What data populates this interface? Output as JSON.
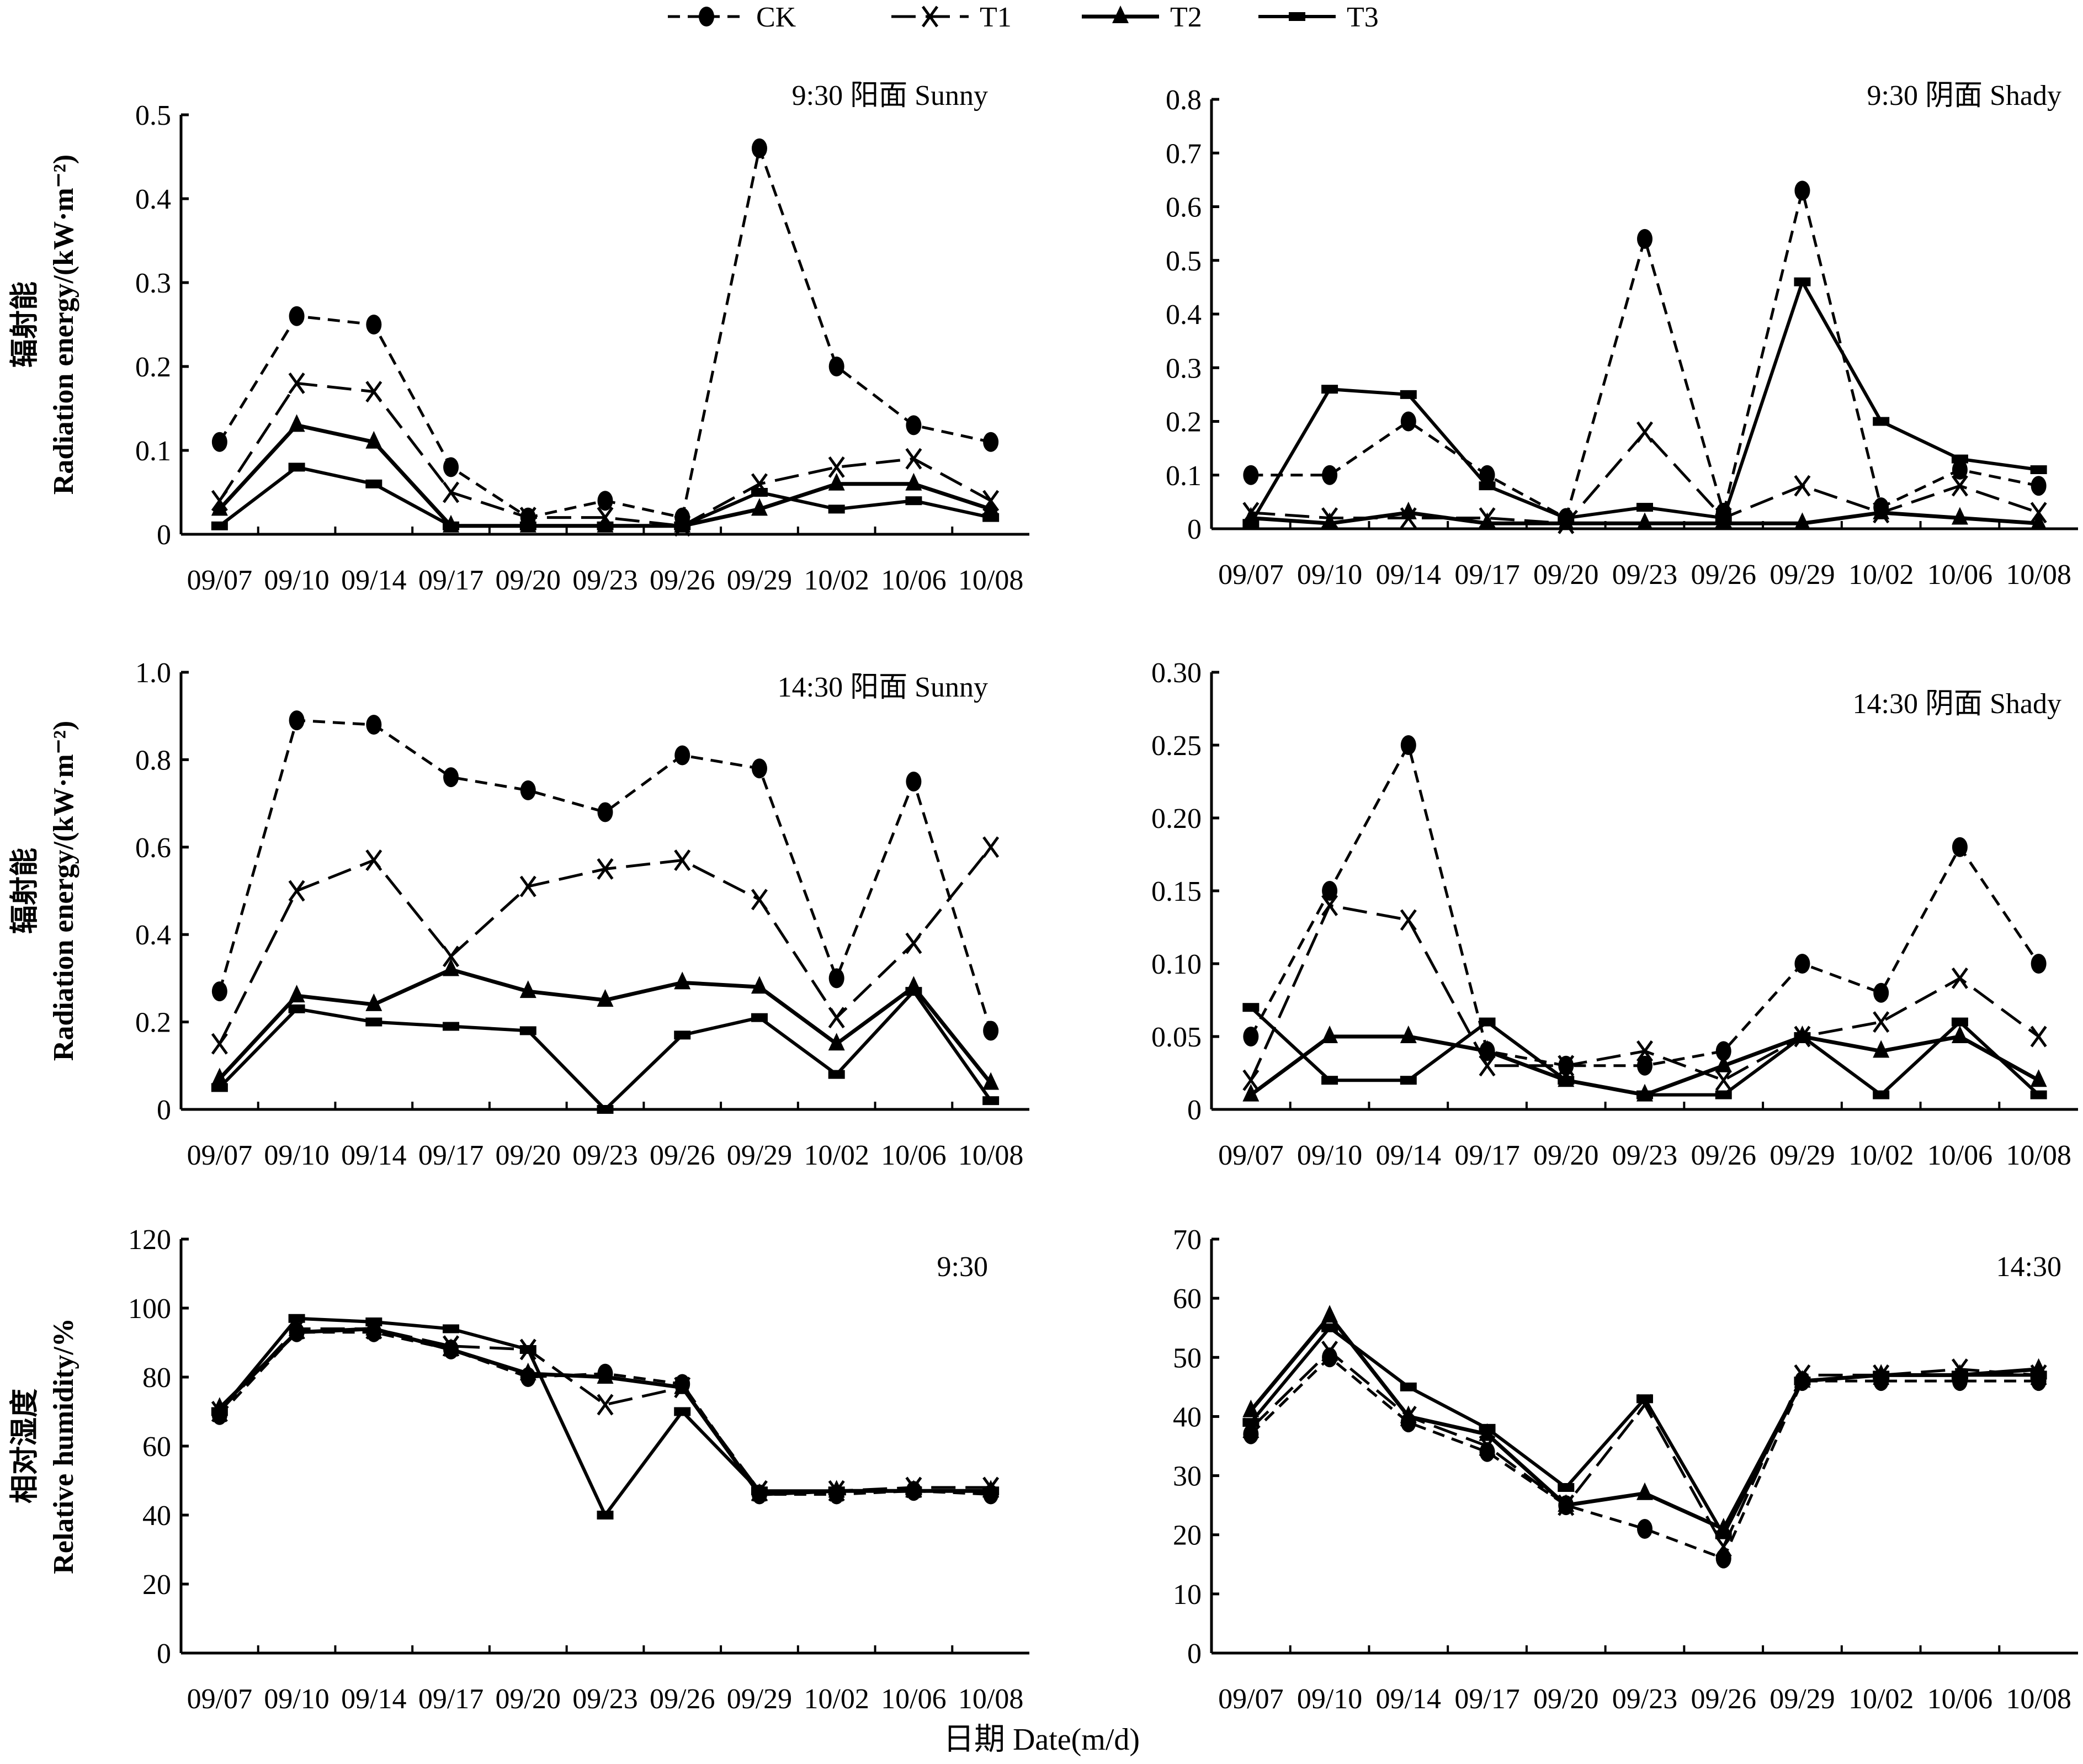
{
  "legend": [
    {
      "name": "CK",
      "marker": "circle",
      "dash": "dash"
    },
    {
      "name": "T1",
      "marker": "x",
      "dash": "longdash"
    },
    {
      "name": "T2",
      "marker": "triangle",
      "dash": "solid"
    },
    {
      "name": "T3",
      "marker": "bar",
      "dash": "solid"
    }
  ],
  "xlabel_global": "日期 Date(m/d)",
  "chart_data": [
    {
      "type": "line",
      "title": "9:30 阳面 Sunny",
      "ylabel_cn": "辐射能",
      "ylabel_en": "Radiation energy/(kW·m⁻²)",
      "categories": [
        "09/07",
        "09/10",
        "09/14",
        "09/17",
        "09/20",
        "09/23",
        "09/26",
        "09/29",
        "10/02",
        "10/06",
        "10/08"
      ],
      "ylim": [
        0,
        0.5
      ],
      "yticks": [
        0,
        0.1,
        0.2,
        0.3,
        0.4,
        0.5
      ],
      "ytick_labels": [
        "0",
        "0.1",
        "0.2",
        "0.3",
        "0.4",
        "0.5"
      ],
      "series": [
        {
          "name": "CK",
          "values": [
            0.11,
            0.26,
            0.25,
            0.08,
            0.02,
            0.04,
            0.02,
            0.46,
            0.2,
            0.13,
            0.11
          ]
        },
        {
          "name": "T1",
          "values": [
            0.04,
            0.18,
            0.17,
            0.05,
            0.02,
            0.02,
            0.01,
            0.06,
            0.08,
            0.09,
            0.04
          ]
        },
        {
          "name": "T2",
          "values": [
            0.03,
            0.13,
            0.11,
            0.01,
            0.01,
            0.01,
            0.01,
            0.03,
            0.06,
            0.06,
            0.03
          ]
        },
        {
          "name": "T3",
          "values": [
            0.01,
            0.08,
            0.06,
            0.01,
            0.01,
            0.01,
            0.01,
            0.05,
            0.03,
            0.04,
            0.02
          ]
        }
      ]
    },
    {
      "type": "line",
      "title": "9:30 阴面 Shady",
      "ylabel_cn": "",
      "ylabel_en": "",
      "categories": [
        "09/07",
        "09/10",
        "09/14",
        "09/17",
        "09/20",
        "09/23",
        "09/26",
        "09/29",
        "10/02",
        "10/06",
        "10/08"
      ],
      "ylim": [
        0,
        0.8
      ],
      "yticks": [
        0,
        0.1,
        0.2,
        0.3,
        0.4,
        0.5,
        0.6,
        0.7,
        0.8
      ],
      "ytick_labels": [
        "0",
        "0.1",
        "0.2",
        "0.3",
        "0.4",
        "0.5",
        "0.6",
        "0.7",
        "0.8"
      ],
      "series": [
        {
          "name": "CK",
          "values": [
            0.1,
            0.1,
            0.2,
            0.1,
            0.02,
            0.54,
            0.03,
            0.63,
            0.04,
            0.11,
            0.08
          ]
        },
        {
          "name": "T1",
          "values": [
            0.03,
            0.02,
            0.02,
            0.02,
            0.01,
            0.18,
            0.02,
            0.08,
            0.03,
            0.08,
            0.03
          ]
        },
        {
          "name": "T2",
          "values": [
            0.02,
            0.01,
            0.03,
            0.01,
            0.01,
            0.01,
            0.01,
            0.01,
            0.03,
            0.02,
            0.01
          ]
        },
        {
          "name": "T3",
          "values": [
            0.01,
            0.26,
            0.25,
            0.08,
            0.02,
            0.04,
            0.02,
            0.46,
            0.2,
            0.13,
            0.11
          ]
        }
      ]
    },
    {
      "type": "line",
      "title": "14:30 阳面 Sunny",
      "ylabel_cn": "辐射能",
      "ylabel_en": "Radiation energy/(kW·m⁻²)",
      "categories": [
        "09/07",
        "09/10",
        "09/14",
        "09/17",
        "09/20",
        "09/23",
        "09/26",
        "09/29",
        "10/02",
        "10/06",
        "10/08"
      ],
      "ylim": [
        0,
        1.0
      ],
      "yticks": [
        0,
        0.2,
        0.4,
        0.6,
        0.8,
        1.0
      ],
      "ytick_labels": [
        "0",
        "0.2",
        "0.4",
        "0.6",
        "0.8",
        "1.0"
      ],
      "series": [
        {
          "name": "CK",
          "values": [
            0.27,
            0.89,
            0.88,
            0.76,
            0.73,
            0.68,
            0.81,
            0.78,
            0.3,
            0.75,
            0.18
          ]
        },
        {
          "name": "T1",
          "values": [
            0.15,
            0.5,
            0.57,
            0.35,
            0.51,
            0.55,
            0.57,
            0.48,
            0.21,
            0.38,
            0.6
          ]
        },
        {
          "name": "T2",
          "values": [
            0.07,
            0.26,
            0.24,
            0.32,
            0.27,
            0.25,
            0.29,
            0.28,
            0.15,
            0.28,
            0.06
          ]
        },
        {
          "name": "T3",
          "values": [
            0.05,
            0.23,
            0.2,
            0.19,
            0.18,
            0.0,
            0.17,
            0.21,
            0.08,
            0.27,
            0.02
          ]
        }
      ]
    },
    {
      "type": "line",
      "title": "14:30 阴面 Shady",
      "ylabel_cn": "",
      "ylabel_en": "",
      "categories": [
        "09/07",
        "09/10",
        "09/14",
        "09/17",
        "09/20",
        "09/23",
        "09/26",
        "09/29",
        "10/02",
        "10/06",
        "10/08"
      ],
      "ylim": [
        0,
        0.3
      ],
      "yticks": [
        0,
        0.05,
        0.1,
        0.15,
        0.2,
        0.25,
        0.3
      ],
      "ytick_labels": [
        "0",
        "0.05",
        "0.10",
        "0.15",
        "0.20",
        "0.25",
        "0.30"
      ],
      "series": [
        {
          "name": "CK",
          "values": [
            0.05,
            0.15,
            0.25,
            0.04,
            0.03,
            0.03,
            0.04,
            0.1,
            0.08,
            0.18,
            0.1
          ]
        },
        {
          "name": "T1",
          "values": [
            0.02,
            0.14,
            0.13,
            0.03,
            0.03,
            0.04,
            0.02,
            0.05,
            0.06,
            0.09,
            0.05
          ]
        },
        {
          "name": "T2",
          "values": [
            0.01,
            0.05,
            0.05,
            0.04,
            0.02,
            0.01,
            0.03,
            0.05,
            0.04,
            0.05,
            0.02
          ]
        },
        {
          "name": "T3",
          "values": [
            0.07,
            0.02,
            0.02,
            0.06,
            0.02,
            0.01,
            0.01,
            0.05,
            0.01,
            0.06,
            0.01
          ]
        }
      ]
    },
    {
      "type": "line",
      "title": "9:30",
      "ylabel_cn": "相对湿度",
      "ylabel_en": "Relative humidity/%",
      "categories": [
        "09/07",
        "09/10",
        "09/14",
        "09/17",
        "09/20",
        "09/23",
        "09/26",
        "09/29",
        "10/02",
        "10/06",
        "10/08"
      ],
      "ylim": [
        0,
        120
      ],
      "yticks": [
        0,
        20,
        40,
        60,
        80,
        100,
        120
      ],
      "ytick_labels": [
        "0",
        "20",
        "40",
        "60",
        "80",
        "100",
        "120"
      ],
      "series": [
        {
          "name": "CK",
          "values": [
            69,
            93,
            93,
            88,
            80,
            81,
            78,
            46,
            46,
            47,
            46
          ]
        },
        {
          "name": "T1",
          "values": [
            70,
            94,
            94,
            89,
            88,
            72,
            77,
            47,
            47,
            48,
            48
          ]
        },
        {
          "name": "T2",
          "values": [
            71,
            93,
            94,
            88,
            81,
            80,
            77,
            46,
            47,
            47,
            47
          ]
        },
        {
          "name": "T3",
          "values": [
            70,
            97,
            96,
            94,
            88,
            40,
            70,
            47,
            47,
            47,
            47
          ]
        }
      ]
    },
    {
      "type": "line",
      "title": "14:30",
      "ylabel_cn": "",
      "ylabel_en": "",
      "categories": [
        "09/07",
        "09/10",
        "09/14",
        "09/17",
        "09/20",
        "09/23",
        "09/26",
        "09/29",
        "10/02",
        "10/06",
        "10/08"
      ],
      "ylim": [
        0,
        70
      ],
      "yticks": [
        0,
        10,
        20,
        30,
        40,
        50,
        60,
        70
      ],
      "ytick_labels": [
        "0",
        "10",
        "20",
        "30",
        "40",
        "50",
        "60",
        "70"
      ],
      "series": [
        {
          "name": "CK",
          "values": [
            37,
            50,
            39,
            34,
            25,
            21,
            16,
            46,
            46,
            46,
            46
          ]
        },
        {
          "name": "T1",
          "values": [
            38,
            51,
            40,
            35,
            25,
            42,
            18,
            47,
            47,
            48,
            47
          ]
        },
        {
          "name": "T2",
          "values": [
            41,
            57,
            40,
            37,
            25,
            27,
            21,
            46,
            47,
            47,
            48
          ]
        },
        {
          "name": "T3",
          "values": [
            39,
            55,
            45,
            38,
            28,
            43,
            20,
            46,
            47,
            47,
            47
          ]
        }
      ]
    }
  ]
}
